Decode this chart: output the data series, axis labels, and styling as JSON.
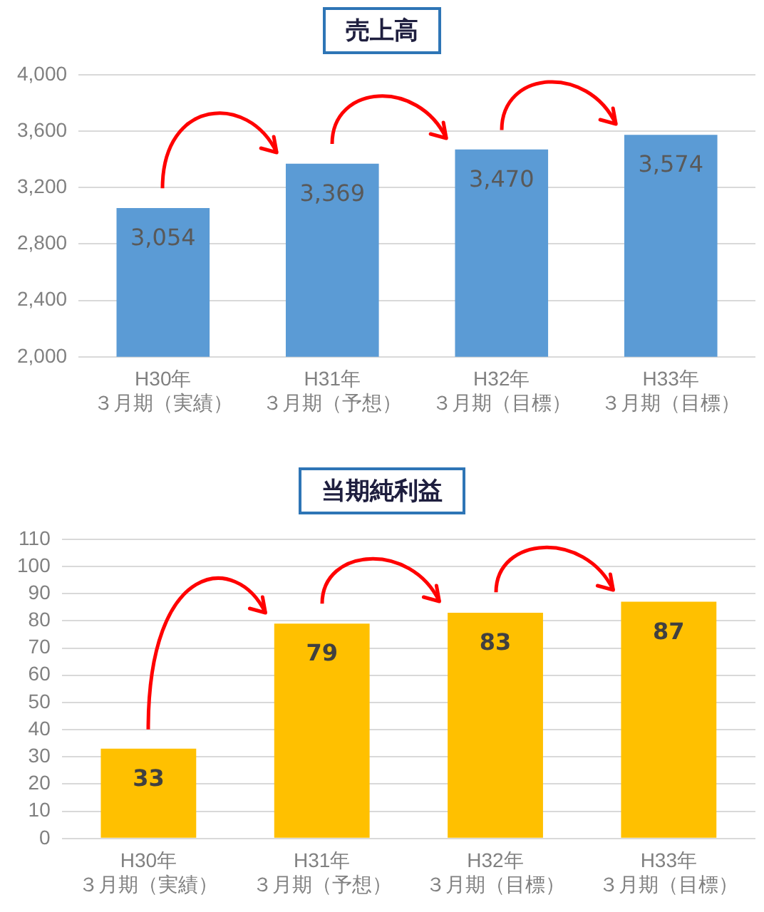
{
  "chart_data": [
    {
      "type": "bar",
      "title": "売上高",
      "categories": [
        "H30年３月期（実績）",
        "H31年３月期（予想）",
        "H32年３月期（目標）",
        "H33年３月期（目標）"
      ],
      "values": [
        3054,
        3369,
        3470,
        3574
      ],
      "color": "#5b9bd5",
      "value_labels": [
        "3,054",
        "3,369",
        "3,470",
        "3,574"
      ],
      "ylim": [
        2000,
        4000
      ],
      "yticks": [
        {
          "value": 2000,
          "label": "2,000"
        },
        {
          "value": 2400,
          "label": "2,400"
        },
        {
          "value": 2800,
          "label": "2,800"
        },
        {
          "value": 3200,
          "label": "3,200"
        },
        {
          "value": 3600,
          "label": "3,600"
        },
        {
          "value": 4000,
          "label": "4,000"
        }
      ],
      "grid": "y"
    },
    {
      "type": "bar",
      "title": "当期純利益",
      "categories": [
        "H30年３月期（実績）",
        "H31年３月期（予想）",
        "H32年３月期（目標）",
        "H33年３月期（目標）"
      ],
      "values": [
        33,
        79,
        83,
        87
      ],
      "color": "#ffc000",
      "data_labels": true,
      "ylim": [
        0,
        110
      ],
      "yticks": [
        0,
        10,
        20,
        30,
        40,
        50,
        60,
        70,
        80,
        90,
        100,
        110
      ],
      "grid": "y"
    }
  ]
}
